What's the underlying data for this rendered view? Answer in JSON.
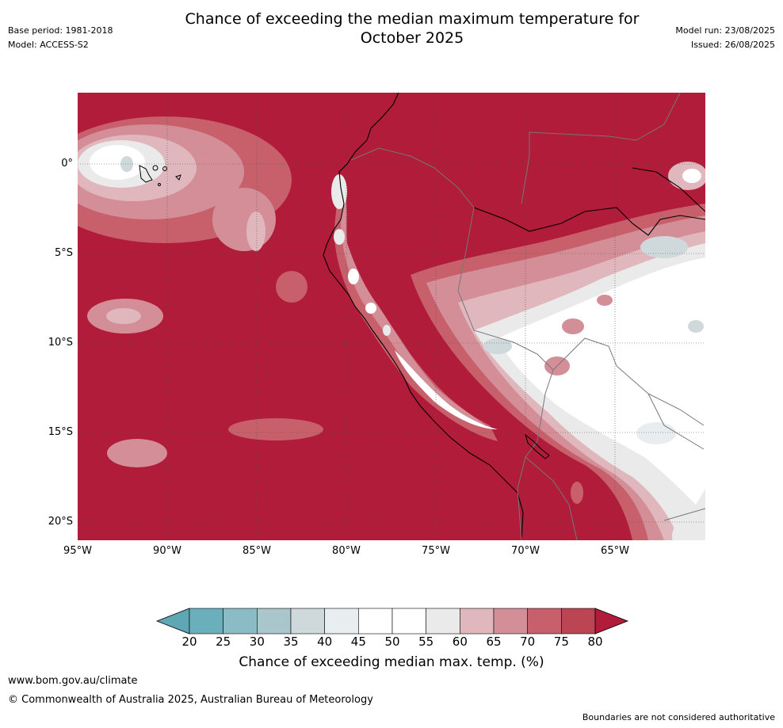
{
  "title": {
    "line1": "Chance of exceeding the median maximum temperature for",
    "line2": "October 2025"
  },
  "meta": {
    "base_period": "Base period: 1981-2018",
    "model": "Model: ACCESS-S2",
    "model_run": "Model run: 23/08/2025",
    "issued": "Issued: 26/08/2025"
  },
  "map": {
    "lat_labels": [
      "0°",
      "5°S",
      "10°S",
      "15°S",
      "20°S"
    ],
    "lon_labels": [
      "95°W",
      "90°W",
      "85°W",
      "80°W",
      "75°W",
      "70°W",
      "65°W"
    ]
  },
  "colorbar": {
    "ticks": [
      "20",
      "25",
      "30",
      "35",
      "40",
      "45",
      "50",
      "55",
      "60",
      "65",
      "70",
      "75",
      "80"
    ],
    "colors": [
      "#5fa7b5",
      "#6aafbc",
      "#8bbcc6",
      "#a9c6cc",
      "#cfd8db",
      "#e8edf0",
      "#ffffff",
      "#ffffff",
      "#eaeaea",
      "#e0b7bd",
      "#d48e98",
      "#c8606c",
      "#bb4553",
      "#b01c39"
    ],
    "label": "Chance of exceeding median max. temp. (%)"
  },
  "footer": {
    "url": "www.bom.gov.au/climate",
    "copyright": "© Commonwealth of Australia 2025, Australian Bureau of Meteorology",
    "disclaimer": "Boundaries are not considered authoritative"
  }
}
